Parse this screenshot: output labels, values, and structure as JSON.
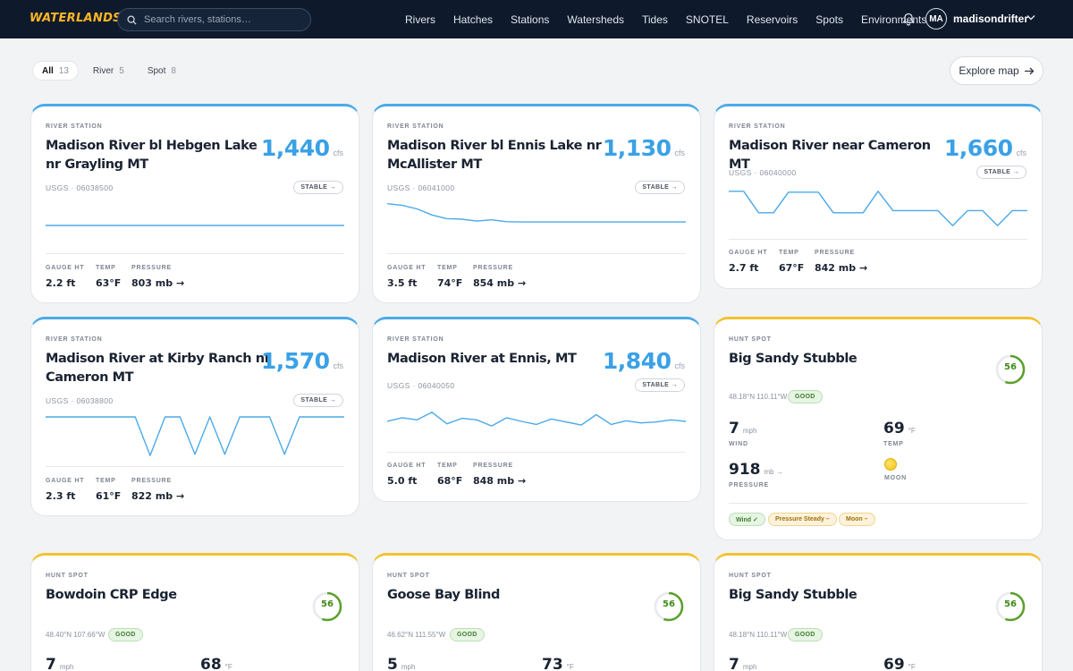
{
  "nav": {
    "logo": "WATERLANDS",
    "search_placeholder": "Search rivers, stations…",
    "links": [
      "Rivers",
      "Hatches",
      "Stations",
      "Watersheds",
      "Tides",
      "SNOTEL",
      "Reservoirs",
      "Spots",
      "Environments"
    ],
    "avatar_initials": "MA",
    "username": "madisondrifter"
  },
  "filters": [
    {
      "label": "All",
      "count": "13",
      "active": true
    },
    {
      "label": "River",
      "count": "5",
      "active": false
    },
    {
      "label": "Spot",
      "count": "8",
      "active": false
    }
  ],
  "explore_label": "Explore map",
  "colors": {
    "river_accent": "#4aaae8",
    "hunt_accent": "#f2c230",
    "flow_value": "#3aa1e6",
    "score_ring": "#5aa02c",
    "nav_bg": "#0e1a2b",
    "logo": "#ffb627"
  },
  "river_cards": [
    {
      "type": "RIVER STATION",
      "title": "Madison River bl Hebgen Lake nr Grayling MT",
      "flow": "1,440",
      "unit": "cfs",
      "agency": "USGS",
      "station": "06038500",
      "trend": "STABLE →",
      "gauge_label": "GAUGE HT",
      "gauge": "2.2 ft",
      "temp_label": "TEMP",
      "temp": "63°F",
      "pressure_label": "PRESSURE",
      "pressure": "803 mb →",
      "sparkline": [
        0.5,
        0.5,
        0.5,
        0.5,
        0.5,
        0.5,
        0.5,
        0.5,
        0.5,
        0.5,
        0.5,
        0.5,
        0.5,
        0.5,
        0.5,
        0.5,
        0.5,
        0.5,
        0.5,
        0.5,
        0.5
      ]
    },
    {
      "type": "RIVER STATION",
      "title": "Madison River bl Ennis Lake nr McAllister MT",
      "flow": "1,130",
      "unit": "cfs",
      "agency": "USGS",
      "station": "06041000",
      "trend": "STABLE →",
      "gauge_label": "GAUGE HT",
      "gauge": "3.5 ft",
      "temp_label": "TEMP",
      "temp": "74°F",
      "pressure_label": "PRESSURE",
      "pressure": "854 mb →",
      "sparkline": [
        0.95,
        0.9,
        0.78,
        0.58,
        0.46,
        0.44,
        0.38,
        0.42,
        0.36,
        0.35,
        0.35,
        0.35,
        0.35,
        0.35,
        0.35,
        0.35,
        0.35,
        0.35,
        0.35,
        0.35,
        0.35
      ]
    },
    {
      "type": "RIVER STATION",
      "title": "Madison River near Cameron MT",
      "flow": "1,660",
      "unit": "cfs",
      "agency": "USGS",
      "station": "06040000",
      "trend": "STABLE →",
      "gauge_label": "GAUGE HT",
      "gauge": "2.7 ft",
      "temp_label": "TEMP",
      "temp": "67°F",
      "pressure_label": "PRESSURE",
      "pressure": "842 mb →",
      "sparkline": [
        0.9,
        0.9,
        0.4,
        0.4,
        0.88,
        0.88,
        0.88,
        0.4,
        0.4,
        0.4,
        0.9,
        0.45,
        0.45,
        0.45,
        0.45,
        0.1,
        0.45,
        0.45,
        0.1,
        0.45,
        0.45
      ]
    },
    {
      "type": "RIVER STATION",
      "title": "Madison River at Kirby Ranch nr Cameron MT",
      "flow": "1,570",
      "unit": "cfs",
      "agency": "USGS",
      "station": "06038800",
      "trend": "STABLE →",
      "gauge_label": "GAUGE HT",
      "gauge": "2.3 ft",
      "temp_label": "TEMP",
      "temp": "61°F",
      "pressure_label": "PRESSURE",
      "pressure": "822 mb →",
      "sparkline": [
        1,
        1,
        1,
        1,
        1,
        1,
        1,
        0.02,
        1,
        1,
        0.05,
        1,
        0.05,
        1,
        1,
        1,
        0.05,
        1,
        1,
        1,
        1
      ]
    },
    {
      "type": "RIVER STATION",
      "title": "Madison River at Ennis, MT",
      "flow": "1,840",
      "unit": "cfs",
      "agency": "USGS",
      "station": "06040050",
      "trend": "STABLE →",
      "gauge_label": "GAUGE HT",
      "gauge": "5.0 ft",
      "temp_label": "TEMP",
      "temp": "68°F",
      "pressure_label": "PRESSURE",
      "pressure": "848 mb →",
      "sparkline": [
        0.5,
        0.62,
        0.55,
        0.8,
        0.42,
        0.6,
        0.55,
        0.35,
        0.62,
        0.5,
        0.4,
        0.58,
        0.48,
        0.38,
        0.72,
        0.4,
        0.52,
        0.45,
        0.48,
        0.55,
        0.5
      ]
    }
  ],
  "hunt_cards": [
    {
      "type": "HUNT SPOT",
      "title": "Big Sandy Stubble",
      "score": "56",
      "score_fraction": 0.56,
      "coords": "48.18°N 110.11°W",
      "status": "GOOD",
      "wind": "7",
      "wind_unit": "mph",
      "wind_label": "WIND",
      "temp": "69",
      "temp_unit": "°F",
      "temp_label": "TEMP",
      "pressure": "918",
      "pressure_unit": "mb →",
      "pressure_label": "PRESSURE",
      "moon_label": "MOON",
      "tags": [
        {
          "label": "Wind ✓",
          "color": "green"
        },
        {
          "label": "Pressure Steady –",
          "color": "amber"
        },
        {
          "label": "Moon –",
          "color": "amber"
        }
      ]
    },
    {
      "type": "HUNT SPOT",
      "title": "Bowdoin CRP Edge",
      "score": "56",
      "score_fraction": 0.56,
      "coords": "48.40°N 107.66°W",
      "status": "GOOD",
      "wind": "7",
      "wind_unit": "mph",
      "temp": "68",
      "temp_unit": "°F"
    },
    {
      "type": "HUNT SPOT",
      "title": "Goose Bay Blind",
      "score": "56",
      "score_fraction": 0.56,
      "coords": "46.62°N 111.55°W",
      "status": "GOOD",
      "wind": "5",
      "wind_unit": "mph",
      "temp": "73",
      "temp_unit": "°F"
    },
    {
      "type": "HUNT SPOT",
      "title": "Big Sandy Stubble",
      "score": "56",
      "score_fraction": 0.56,
      "coords": "48.18°N 110.11°W",
      "status": "GOOD",
      "wind": "7",
      "wind_unit": "mph",
      "temp": "69",
      "temp_unit": "°F"
    }
  ]
}
